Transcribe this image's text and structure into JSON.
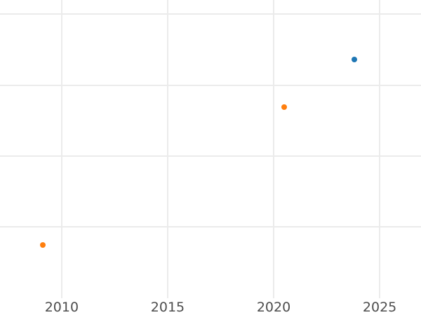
{
  "figure": {
    "background_color": "#ffffff"
  },
  "chart_data": {
    "type": "scatter",
    "title": "",
    "xlabel": "",
    "ylabel": "",
    "grid": true,
    "legend": false,
    "background_color": "#ffffff",
    "grid_color": "#ebebeb",
    "tick_label_color": "#4d4d4d",
    "tick_label_font_size_px": 19,
    "xlim": [
      2007.09,
      2026.95
    ],
    "ylim": [
      -0.24,
      4.2
    ],
    "x_ticks": [
      {
        "value": 2010,
        "label": "2010"
      },
      {
        "value": 2015,
        "label": "2015"
      },
      {
        "value": 2020,
        "label": "2020"
      },
      {
        "value": 2025,
        "label": "2025"
      }
    ],
    "y_gridline_values": [
      1,
      2,
      3,
      4
    ],
    "y_axis_tick_labels_visible": false,
    "y_unit_note": "no y-axis labels visible; y values estimated in gridline units above plot bottom",
    "plot_bottom_value": 0,
    "marker_diameter_px": 8,
    "series": [
      {
        "name": "blue",
        "color": "#1f77b4",
        "points": [
          {
            "x": 2023.8,
            "y": 3.36
          }
        ]
      },
      {
        "name": "orange",
        "color": "#ff7f0e",
        "points": [
          {
            "x": 2009.1,
            "y": 0.75
          },
          {
            "x": 2020.5,
            "y": 2.69
          }
        ]
      }
    ]
  }
}
